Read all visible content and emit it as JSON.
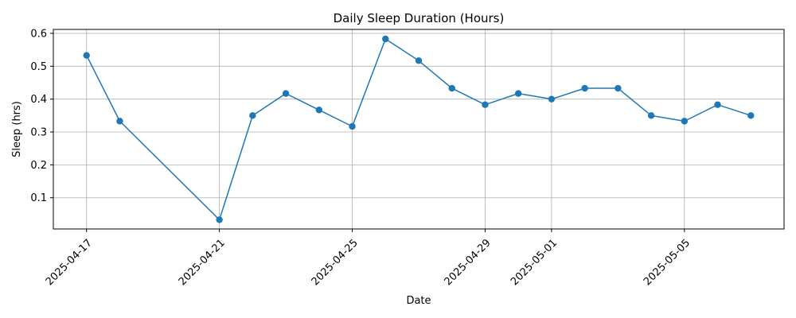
{
  "chart_data": {
    "type": "line",
    "title": "Daily Sleep Duration (Hours)",
    "xlabel": "Date",
    "ylabel": "Sleep (hrs)",
    "x": [
      "2025-04-17",
      "2025-04-18",
      "2025-04-21",
      "2025-04-22",
      "2025-04-23",
      "2025-04-24",
      "2025-04-25",
      "2025-04-26",
      "2025-04-27",
      "2025-04-28",
      "2025-04-29",
      "2025-04-30",
      "2025-05-01",
      "2025-05-02",
      "2025-05-03",
      "2025-05-04",
      "2025-05-05",
      "2025-05-06",
      "2025-05-07"
    ],
    "series": [
      {
        "values": [
          0.533,
          0.333,
          0.033,
          0.35,
          0.417,
          0.367,
          0.317,
          0.583,
          0.517,
          0.433,
          0.383,
          0.417,
          0.4,
          0.433,
          0.433,
          0.35,
          0.333,
          0.383,
          0.35
        ]
      }
    ],
    "xlim": [
      "2025-04-16",
      "2025-05-08"
    ],
    "ylim": [
      0.005,
      0.612
    ],
    "xticks": [
      "2025-04-17",
      "2025-04-21",
      "2025-04-25",
      "2025-04-29",
      "2025-05-01",
      "2025-05-05"
    ],
    "yticks": [
      0.1,
      0.2,
      0.3,
      0.4,
      0.5,
      0.6
    ],
    "ytick_labels": [
      "0.1",
      "0.2",
      "0.3",
      "0.4",
      "0.5",
      "0.6"
    ],
    "grid": true,
    "line_color": "#1f77b4"
  }
}
